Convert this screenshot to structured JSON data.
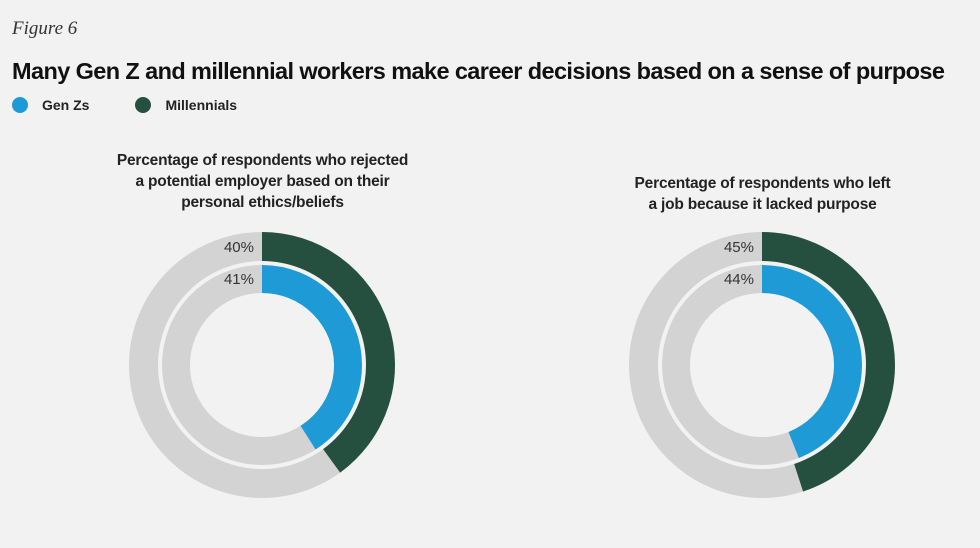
{
  "figure_label": "Figure 6",
  "title": "Many Gen Z and millennial workers make career decisions based on a sense of purpose",
  "legend": [
    {
      "label": "Gen Zs",
      "color": "#1e9ad6"
    },
    {
      "label": "Millennials",
      "color": "#25503f"
    }
  ],
  "colors": {
    "remainder": "#d3d3d3",
    "genz": "#1e9ad6",
    "millennial": "#25503f"
  },
  "chart_data": [
    {
      "type": "pie",
      "title": "Percentage of respondents who rejected a potential employer based on their personal ethics/beliefs",
      "title_lines": [
        "Percentage of respondents who rejected",
        "a potential employer based on their",
        "personal ethics/beliefs"
      ],
      "series": [
        {
          "name": "Millennials",
          "value": 40,
          "label": "40%",
          "ring": "outer"
        },
        {
          "name": "Gen Zs",
          "value": 41,
          "label": "41%",
          "ring": "inner"
        }
      ]
    },
    {
      "type": "pie",
      "title": "Percentage of respondents who left a job because it lacked purpose",
      "title_lines": [
        "Percentage of respondents who left",
        "a job because it lacked purpose"
      ],
      "series": [
        {
          "name": "Millennials",
          "value": 45,
          "label": "45%",
          "ring": "outer"
        },
        {
          "name": "Gen Zs",
          "value": 44,
          "label": "44%",
          "ring": "inner"
        }
      ]
    }
  ]
}
